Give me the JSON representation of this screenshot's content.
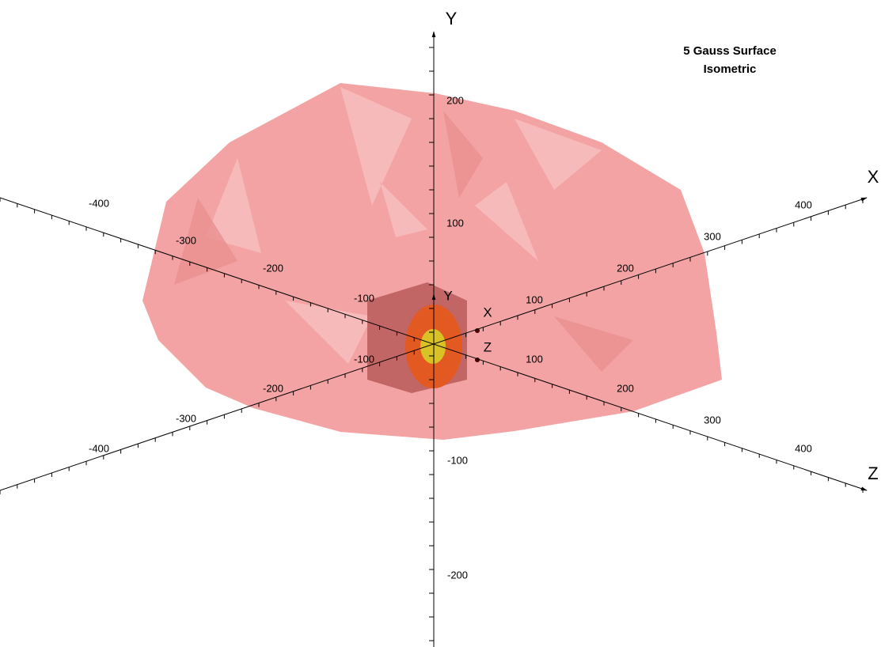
{
  "title": [
    "5 Gauss Surface",
    "Isometric"
  ],
  "axes": {
    "y": {
      "label": "Y",
      "ticks": [
        "200",
        "100",
        "-100",
        "-200"
      ]
    },
    "x": {
      "label": "X",
      "ticks": [
        "-400",
        "-300",
        "-200",
        "-100",
        "100",
        "200",
        "300",
        "400"
      ]
    },
    "z": {
      "label": "Z",
      "ticks": [
        "-400",
        "-300",
        "-200",
        "-100",
        "100",
        "200",
        "300",
        "400"
      ]
    }
  },
  "inner_axes": [
    "Y",
    "X",
    "Z"
  ]
}
